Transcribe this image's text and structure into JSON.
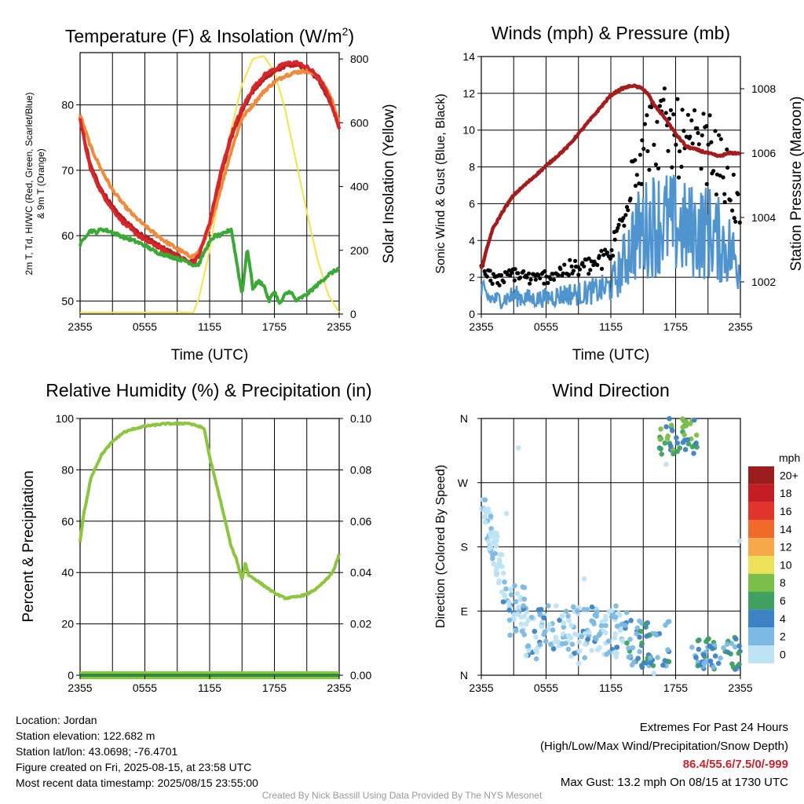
{
  "chart_data": [
    {
      "type": "line",
      "title": "Temperature (F) & Insolation (W/m²)",
      "title_main": "Temperature (F) & Insolation (W/m",
      "title_sup": "2",
      "title_end": ")",
      "xlabel": "Time (UTC)",
      "ylabel_lines": [
        "2m T, Td, HI/WC (Red, Green, Scarlet/Blue)",
        "& 9m T (Orange)"
      ],
      "y2label": "Solar Insolation (Yellow)",
      "x_ticks": [
        "2355",
        "0555",
        "1155",
        "1755",
        "2355"
      ],
      "x_range_hours": [
        0,
        24
      ],
      "ylim": [
        48,
        88
      ],
      "y_ticks": [
        50,
        60,
        70,
        80
      ],
      "y2lim": [
        0,
        820
      ],
      "y2_ticks": [
        0,
        200,
        400,
        600,
        800
      ],
      "grid": true,
      "series": [
        {
          "color": "#b22222",
          "x": [
            0,
            0.5,
            1,
            2,
            3,
            4,
            5,
            6,
            7,
            8,
            9,
            10,
            10.5,
            11,
            12,
            13,
            14,
            15,
            16,
            17,
            18,
            19,
            20,
            21,
            22,
            23,
            23.5,
            24
          ],
          "values": [
            78,
            74,
            70.5,
            67,
            64.5,
            62.5,
            61,
            59.8,
            58.8,
            57.8,
            57,
            56.2,
            56,
            57,
            61.5,
            69,
            75,
            79,
            82,
            84,
            85,
            86,
            86.2,
            85.5,
            84,
            81,
            79,
            76.5
          ]
        },
        {
          "color": "#f08a3c",
          "x": [
            0,
            0.5,
            1,
            2,
            3,
            4,
            5,
            6,
            7,
            8,
            9,
            10,
            10.5,
            11,
            12,
            13,
            14,
            15,
            16,
            17,
            18,
            19,
            20,
            21,
            22,
            23,
            23.5,
            24
          ],
          "values": [
            78.5,
            76,
            73.5,
            70,
            67,
            64.8,
            63,
            61.5,
            60.2,
            59,
            58,
            57,
            56.8,
            57.5,
            61,
            67,
            73,
            78,
            80,
            82,
            83.5,
            84.5,
            85,
            85.2,
            84.5,
            82,
            80,
            77
          ]
        },
        {
          "color": "#d8262b",
          "x": [
            0,
            0.5,
            1,
            2,
            3,
            4,
            5,
            6,
            7,
            8,
            9,
            10,
            10.5,
            11,
            12,
            13,
            14,
            15,
            16,
            17,
            18,
            19,
            20,
            21,
            22,
            23,
            23.5,
            24
          ],
          "values": [
            78,
            73.5,
            70,
            66.5,
            64,
            62,
            60.5,
            59.3,
            58.5,
            57.5,
            56.7,
            56,
            55.8,
            57,
            62,
            69.5,
            75.5,
            79.5,
            82.5,
            84.5,
            85.5,
            86.3,
            86.5,
            85.8,
            84.5,
            81.5,
            79,
            76.5
          ]
        },
        {
          "color": "#3aa935",
          "x": [
            0,
            0.5,
            1,
            1.5,
            2,
            3,
            4,
            5,
            6,
            7,
            8,
            9,
            10,
            10.5,
            11,
            11.5,
            12,
            12.5,
            13,
            13.5,
            14,
            14.5,
            15,
            15.2,
            15.5,
            16,
            16.5,
            17,
            17.5,
            18,
            18.5,
            19,
            19.5,
            20,
            21,
            22,
            23,
            23.5,
            24
          ],
          "values": [
            58.5,
            60,
            60.8,
            60.5,
            61,
            60.5,
            59.8,
            59.2,
            58.5,
            57.5,
            57,
            56.5,
            56,
            55.5,
            55.6,
            57.5,
            59,
            60,
            60,
            60.5,
            61,
            56,
            51,
            54,
            58,
            52,
            53,
            52.5,
            50,
            51.5,
            49.5,
            51,
            51.5,
            50,
            51,
            52.5,
            54,
            54.5,
            55
          ]
        }
      ],
      "insolation": {
        "color": "#f6e34a",
        "x": [
          0,
          10.5,
          11,
          12,
          13,
          14,
          15,
          16,
          17,
          18,
          19,
          20,
          21,
          22,
          23,
          24
        ],
        "values": [
          5,
          5,
          50,
          200,
          400,
          580,
          720,
          800,
          810,
          760,
          640,
          480,
          320,
          170,
          60,
          5
        ]
      }
    },
    {
      "type": "line",
      "title": "Winds (mph) & Pressure (mb)",
      "xlabel": "Time (UTC)",
      "ylabel": "Sonic Wind & Gust (Blue, Black)",
      "y2label": "Station Pressure (Maroon)",
      "x_ticks": [
        "2355",
        "0555",
        "1155",
        "1755",
        "2355"
      ],
      "x_range_hours": [
        0,
        24
      ],
      "ylim": [
        0,
        14
      ],
      "y_ticks": [
        0,
        2,
        4,
        6,
        8,
        10,
        12,
        14
      ],
      "y2lim": [
        1001,
        1009
      ],
      "y2_ticks": [
        1002,
        1004,
        1006,
        1008
      ],
      "grid": true,
      "wind_color": "#4f94cf",
      "gust_color": "#000000",
      "pressure": {
        "color": "#a51c1c",
        "x": [
          0,
          1,
          2,
          3,
          4,
          5,
          6,
          7,
          8,
          9,
          10,
          11,
          12,
          13,
          14,
          15,
          15.5,
          16,
          17,
          18,
          19,
          20,
          21,
          22,
          23,
          24
        ],
        "values": [
          1002.4,
          1003.6,
          1004.2,
          1004.7,
          1005.0,
          1005.3,
          1005.6,
          1005.9,
          1006.2,
          1006.6,
          1007.0,
          1007.4,
          1007.8,
          1008.0,
          1008.1,
          1008.0,
          1007.8,
          1007.5,
          1007.1,
          1006.6,
          1006.2,
          1006.1,
          1006.0,
          1005.9,
          1006.0,
          1006.0
        ]
      },
      "wind_profile": {
        "x": [
          0,
          1,
          2,
          3,
          4,
          5,
          6,
          7,
          8,
          9,
          10,
          11,
          12,
          13,
          14,
          15,
          16,
          17,
          18,
          19,
          20,
          21,
          22,
          23,
          24
        ],
        "values": [
          1.2,
          0.8,
          0.8,
          1.0,
          0.9,
          0.8,
          0.9,
          1.0,
          1.1,
          1.1,
          1.2,
          1.3,
          1.5,
          2.5,
          4.0,
          4.5,
          5.0,
          5.0,
          4.8,
          4.5,
          4.5,
          4.5,
          4.0,
          3.5,
          2.5
        ]
      }
    },
    {
      "type": "line",
      "title": "Relative Humidity (%) & Precipitation (in)",
      "ylabel": "Percent & Precipitation",
      "x_ticks": [
        "2355",
        "0555",
        "1155",
        "1755",
        "2355"
      ],
      "x_range_hours": [
        0,
        24
      ],
      "ylim": [
        0,
        100
      ],
      "y_ticks": [
        0,
        20,
        40,
        60,
        80,
        100
      ],
      "y2lim": [
        0,
        0.1
      ],
      "y2_ticks": [
        "0.00",
        "0.02",
        "0.04",
        "0.06",
        "0.08",
        "0.10"
      ],
      "grid": true,
      "series": [
        {
          "color": "#8cc63f",
          "x": [
            0,
            0.3,
            0.7,
            1,
            2,
            3,
            4,
            5,
            6,
            7,
            8,
            9,
            10,
            10.5,
            11,
            11.5,
            12,
            13,
            14,
            14.5,
            15,
            15.3,
            15.6,
            16,
            17,
            18,
            19,
            20,
            21,
            22,
            23,
            23.5,
            24
          ],
          "values": [
            52,
            62,
            70,
            77,
            86,
            91,
            94.5,
            96,
            97,
            97.5,
            98,
            98,
            98.2,
            97.5,
            97,
            96,
            85,
            68,
            50,
            45,
            37,
            44,
            39,
            38,
            35,
            32,
            30,
            30.5,
            31.5,
            34,
            38,
            41,
            47
          ]
        },
        {
          "color": "#2e8b3a",
          "x": [
            0,
            24
          ],
          "values": [
            0,
            0
          ]
        }
      ]
    },
    {
      "type": "scatter",
      "title": "Wind Direction",
      "ylabel": "Direction (Colored By Speed)",
      "x_ticks": [
        "2355",
        "0555",
        "1155",
        "1755",
        "2355"
      ],
      "x_range_hours": [
        0,
        24
      ],
      "y_ticks": [
        "N",
        "E",
        "S",
        "W",
        "N"
      ],
      "ylim_degrees": [
        0,
        360
      ],
      "grid": true,
      "legend_title": "mph",
      "legend_position": "right",
      "legend_labels": [
        "20+",
        "18",
        "16",
        "14",
        "12",
        "10",
        "8",
        "6",
        "4",
        "2",
        "0"
      ],
      "legend_colors": [
        "#9b1c1c",
        "#c41e24",
        "#e0342c",
        "#f06a2c",
        "#f7a84a",
        "#ebe15a",
        "#7bbf4a",
        "#3fa060",
        "#3d82c4",
        "#7cb9e3",
        "#bde3f5"
      ],
      "speed_colors": [
        "#bde3f5",
        "#7cb9e3",
        "#3d82c4",
        "#3fa060",
        "#7bbf4a"
      ]
    }
  ],
  "info": {
    "location": "Location: Jordan",
    "elevation": "Station elevation: 122.682 m",
    "latlon": "Station lat/lon: 43.0698; -76.4701",
    "created": "Figure created on Fri, 2025-08-15, at 23:58 UTC",
    "recent": "Most recent data timestamp: 2025/08/15 23:55:00"
  },
  "extremes": {
    "title": "Extremes For Past 24 Hours",
    "subtitle": "(High/Low/Max Wind/Precipitation/Snow Depth)",
    "values": "86.4/55.6/7.5/0/-999",
    "values_color": "#c8232c",
    "gust": "Max Gust: 13.2 mph On 08/15 at 1730 UTC"
  },
  "credit": "Created By Nick Bassill Using Data Provided By The NYS Mesonet"
}
